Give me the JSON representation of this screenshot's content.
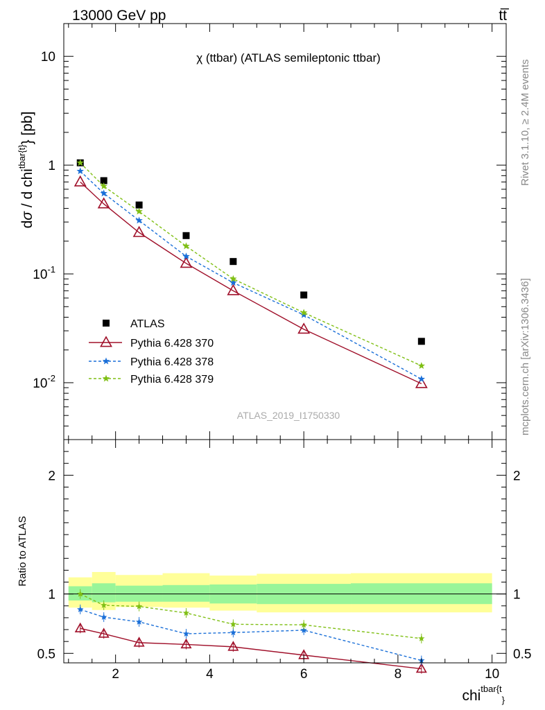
{
  "header": {
    "left": "13000 GeV pp",
    "right": "tt̅"
  },
  "plot_title": "χ (ttbar) (ATLAS semileptonic ttbar)",
  "side_text": {
    "rivet": "Rivet 3.1.10, ≥ 2.4M events",
    "mcplots": "mcplots.cern.ch [arXiv:1306.3436]"
  },
  "watermark": "ATLAS_2019_I1750330",
  "colors": {
    "atlas": "#000000",
    "p370": "#a0102a",
    "p378": "#1a6fd8",
    "p379": "#7fbf14",
    "band_inner": "#99f599",
    "band_outer": "#ffff99"
  },
  "chart_data": [
    {
      "type": "scatter",
      "title": "χ (ttbar) (ATLAS semileptonic ttbar)",
      "ylabel": "dσ / d chi^{tbar{t}} [pb]",
      "yscale": "log",
      "ylim": [
        0.003,
        20
      ],
      "xlim": [
        0.9,
        10.3
      ],
      "ytick_labels": [
        "10^-2",
        "10^-1",
        "1",
        "10"
      ],
      "legend_position": "bottom-left",
      "series": [
        {
          "name": "ATLAS",
          "marker": "square",
          "x": [
            1.25,
            1.75,
            2.5,
            3.5,
            4.5,
            6.0,
            8.5
          ],
          "y": [
            1.05,
            0.72,
            0.43,
            0.225,
            0.13,
            0.064,
            0.024
          ]
        },
        {
          "name": "Pythia 6.428 370",
          "marker": "triangle",
          "line": "solid",
          "x": [
            1.25,
            1.75,
            2.5,
            3.5,
            4.5,
            6.0,
            8.5
          ],
          "y": [
            0.7,
            0.44,
            0.24,
            0.125,
            0.07,
            0.031,
            0.0098
          ]
        },
        {
          "name": "Pythia 6.428 378",
          "marker": "star",
          "line": "dashed",
          "x": [
            1.25,
            1.75,
            2.5,
            3.5,
            4.5,
            6.0,
            8.5
          ],
          "y": [
            0.88,
            0.55,
            0.31,
            0.145,
            0.083,
            0.042,
            0.0108
          ]
        },
        {
          "name": "Pythia 6.428 379",
          "marker": "star",
          "line": "dashed",
          "x": [
            1.25,
            1.75,
            2.5,
            3.5,
            4.5,
            6.0,
            8.5
          ],
          "y": [
            1.05,
            0.64,
            0.375,
            0.18,
            0.09,
            0.044,
            0.0143
          ]
        }
      ]
    },
    {
      "type": "line",
      "ylabel": "Ratio to ATLAS",
      "xlabel": "chi^{tbar{t}}",
      "ylim": [
        0.42,
        2.3
      ],
      "xlim": [
        0.9,
        10.3
      ],
      "xtick_labels": [
        "2",
        "4",
        "6",
        "8",
        "10"
      ],
      "ytick_labels": [
        "0.5",
        "1",
        "2"
      ],
      "bins": [
        [
          1,
          1.5
        ],
        [
          1.5,
          2
        ],
        [
          2,
          3
        ],
        [
          3,
          4
        ],
        [
          4,
          5
        ],
        [
          5,
          7
        ],
        [
          7,
          10
        ]
      ],
      "band_inner": [
        [
          0.945,
          1.065
        ],
        [
          0.93,
          1.09
        ],
        [
          0.935,
          1.07
        ],
        [
          0.935,
          1.075
        ],
        [
          0.92,
          1.08
        ],
        [
          0.915,
          1.085
        ],
        [
          0.915,
          1.09
        ]
      ],
      "band_outer": [
        [
          0.885,
          1.14
        ],
        [
          0.865,
          1.185
        ],
        [
          0.89,
          1.16
        ],
        [
          0.885,
          1.175
        ],
        [
          0.86,
          1.155
        ],
        [
          0.845,
          1.17
        ],
        [
          0.845,
          1.175
        ]
      ],
      "series": [
        {
          "name": "Pythia 6.428 370",
          "x": [
            1.25,
            1.75,
            2.5,
            3.5,
            4.5,
            6.0,
            8.5
          ],
          "y": [
            0.71,
            0.665,
            0.59,
            0.575,
            0.555,
            0.485,
            0.37
          ]
        },
        {
          "name": "Pythia 6.428 378",
          "x": [
            1.25,
            1.75,
            2.5,
            3.5,
            4.5,
            6.0,
            8.5
          ],
          "y": [
            0.87,
            0.805,
            0.765,
            0.665,
            0.675,
            0.695,
            0.44
          ]
        },
        {
          "name": "Pythia 6.428 379",
          "x": [
            1.25,
            1.75,
            2.5,
            3.5,
            4.5,
            6.0,
            8.5
          ],
          "y": [
            1.0,
            0.905,
            0.895,
            0.84,
            0.745,
            0.74,
            0.625
          ]
        }
      ]
    }
  ]
}
